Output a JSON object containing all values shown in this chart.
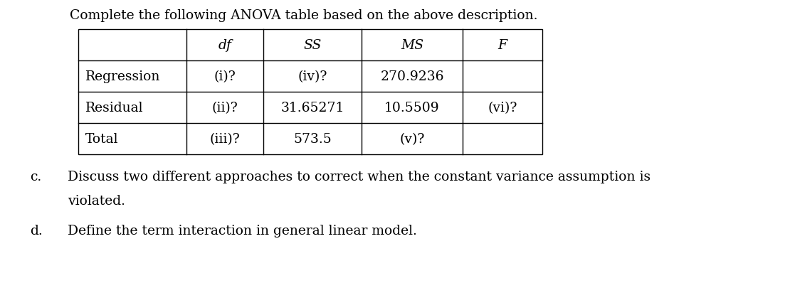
{
  "title": "Complete the following ANOVA table based on the above description.",
  "table_headers": [
    "",
    "df",
    "SS",
    "MS",
    "F"
  ],
  "table_rows": [
    [
      "Regression",
      "(i)?",
      "(iv)?",
      "270.9236",
      ""
    ],
    [
      "Residual",
      "(ii)?",
      "31.65271",
      "10.5509",
      "(vi)?"
    ],
    [
      "Total",
      "(iii)?",
      "573.5",
      "(v)?",
      ""
    ]
  ],
  "text_c_label": "c.",
  "text_c_line1": "Discuss two different approaches to correct when the constant variance assumption is",
  "text_c_line2": "violated.",
  "text_d_label": "d.",
  "text_d": "Define the term interaction in general linear model.",
  "bg_color": "#ffffff",
  "font_size": 13.5,
  "fig_width": 11.1,
  "fig_height": 4.06,
  "dpi": 100
}
